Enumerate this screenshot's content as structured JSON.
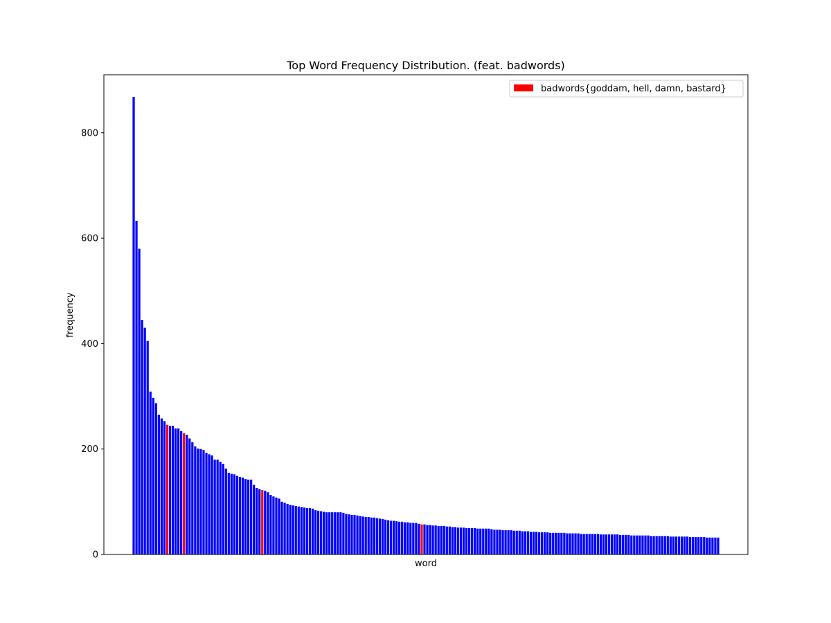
{
  "chart_data": {
    "type": "bar",
    "title": "Top Word Frequency Distribution. (feat. badwords)",
    "xlabel": "word",
    "ylabel": "frequency",
    "ylim": [
      0,
      910
    ],
    "yticks": [
      0,
      200,
      400,
      600,
      800
    ],
    "grid": false,
    "legend": {
      "placement": "top-right",
      "entries": [
        {
          "label": "badwords{goddam, hell, damn, bastard}",
          "color": "#ff0000"
        }
      ]
    },
    "colors": {
      "normal": "#0000ff",
      "highlight": "#ff0000"
    },
    "values": [
      868,
      633,
      580,
      445,
      430,
      405,
      309,
      297,
      287,
      265,
      258,
      253,
      246,
      244,
      244,
      239,
      239,
      234,
      230,
      227,
      220,
      213,
      205,
      201,
      200,
      198,
      193,
      190,
      188,
      180,
      180,
      176,
      172,
      163,
      155,
      153,
      152,
      149,
      147,
      146,
      143,
      142,
      142,
      132,
      126,
      124,
      122,
      121,
      118,
      113,
      110,
      108,
      106,
      100,
      98,
      96,
      94,
      93,
      92,
      91,
      90,
      89,
      88,
      88,
      87,
      84,
      83,
      82,
      81,
      80,
      80,
      80,
      80,
      80,
      80,
      79,
      77,
      76,
      75,
      75,
      74,
      73,
      72,
      71,
      71,
      70,
      70,
      69,
      68,
      67,
      66,
      65,
      64,
      64,
      63,
      62,
      62,
      61,
      61,
      60,
      60,
      60,
      58,
      57,
      57,
      56,
      56,
      55,
      55,
      54,
      54,
      54,
      53,
      53,
      52,
      52,
      51,
      51,
      51,
      50,
      50,
      50,
      50,
      49,
      49,
      49,
      49,
      49,
      48,
      47,
      47,
      47,
      46,
      46,
      46,
      46,
      45,
      45,
      45,
      44,
      44,
      44,
      43,
      43,
      43,
      42,
      42,
      42,
      42,
      41,
      41,
      41,
      41,
      41,
      41,
      40,
      40,
      40,
      40,
      40,
      39,
      39,
      39,
      39,
      39,
      39,
      39,
      38,
      38,
      38,
      38,
      38,
      38,
      38,
      37,
      37,
      37,
      37,
      36,
      36,
      36,
      36,
      36,
      36,
      36,
      35,
      35,
      35,
      35,
      35,
      35,
      35,
      34,
      34,
      34,
      34,
      34,
      34,
      34,
      33,
      33,
      33,
      33,
      33,
      33,
      32,
      32,
      32,
      32,
      32
    ],
    "highlight_indices": [
      12,
      18,
      46,
      103
    ]
  }
}
